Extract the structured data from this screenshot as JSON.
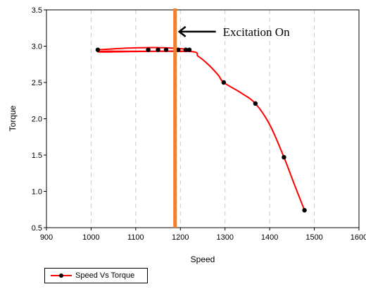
{
  "chart_data": {
    "type": "line",
    "xlabel": "Speed",
    "ylabel": "Torque",
    "xlim": [
      900,
      1600
    ],
    "ylim": [
      0.5,
      3.5
    ],
    "xticks": [
      900,
      1000,
      1100,
      1200,
      1300,
      1400,
      1500,
      1600
    ],
    "yticks": [
      0.5,
      1.0,
      1.5,
      2.0,
      2.5,
      3.0,
      3.5
    ],
    "ytick_labels": [
      "0.5",
      "1.0",
      "1.5",
      "2.0",
      "2.5",
      "3.0",
      "3.5"
    ],
    "grid": "vertical dashed",
    "legend_position": "bottom-left",
    "series": [
      {
        "name": "Speed Vs Torque",
        "color": "#ff0000",
        "marker_color": "#000000",
        "x": [
          1015,
          1128,
          1150,
          1168,
          1195,
          1212,
          1220,
          1297,
          1368,
          1432,
          1478
        ],
        "y": [
          2.95,
          2.95,
          2.95,
          2.95,
          2.95,
          2.95,
          2.95,
          2.5,
          2.21,
          1.47,
          0.74
        ]
      }
    ],
    "curve_path": [
      [
        1015,
        2.95
      ],
      [
        1070,
        2.97
      ],
      [
        1140,
        2.98
      ],
      [
        1190,
        2.97
      ],
      [
        1220,
        2.95
      ],
      [
        1215,
        2.93
      ],
      [
        1150,
        2.93
      ],
      [
        1060,
        2.93
      ],
      [
        1030,
        2.93
      ],
      [
        1030,
        2.92
      ],
      [
        1215,
        2.93
      ],
      [
        1240,
        2.86
      ],
      [
        1262,
        2.75
      ],
      [
        1285,
        2.6
      ],
      [
        1297,
        2.5
      ],
      [
        1335,
        2.36
      ],
      [
        1368,
        2.21
      ],
      [
        1400,
        1.92
      ],
      [
        1432,
        1.47
      ],
      [
        1455,
        1.1
      ],
      [
        1478,
        0.74
      ]
    ],
    "vertical_marker": {
      "x": 1188,
      "color": "#f08030"
    },
    "annotation": {
      "text": "Excitation On",
      "arrow_to_x": 1188,
      "y": 3.2
    }
  }
}
